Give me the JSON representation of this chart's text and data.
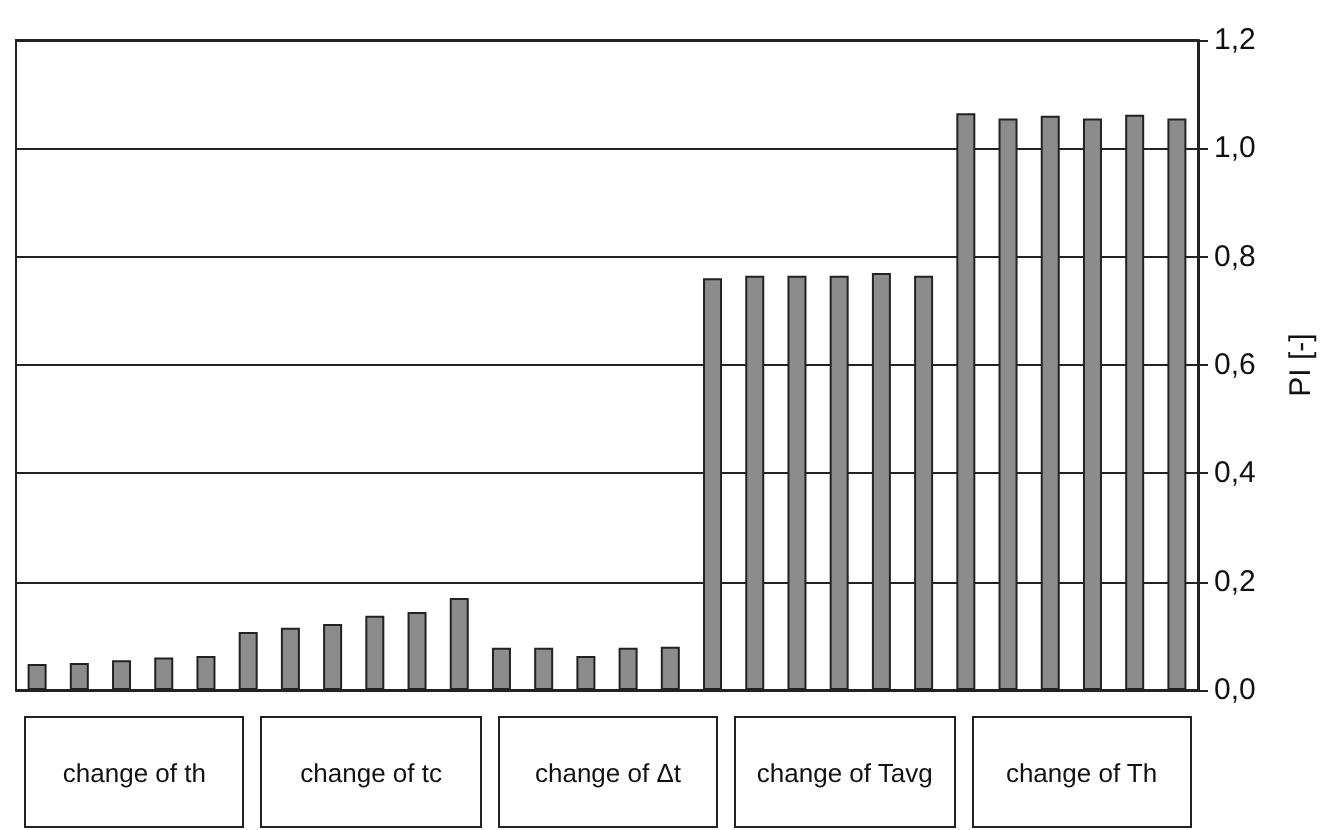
{
  "chart_data": {
    "type": "bar",
    "ylabel": "PI [-]",
    "categories": [
      null,
      null,
      null,
      null,
      null,
      null,
      null,
      null,
      null,
      null,
      null,
      null,
      null,
      null,
      null,
      null,
      null,
      null,
      null,
      null,
      null,
      null,
      null,
      null,
      null,
      null,
      null,
      null
    ],
    "values": [
      0.048,
      0.05,
      0.055,
      0.06,
      0.063,
      0.107,
      0.115,
      0.122,
      0.137,
      0.144,
      0.17,
      0.078,
      0.078,
      0.063,
      0.078,
      0.08,
      0.76,
      0.765,
      0.765,
      0.765,
      0.77,
      0.765,
      1.065,
      1.055,
      1.06,
      1.055,
      1.062,
      1.055
    ],
    "color": "#8c8c8c",
    "ylim": [
      0,
      1.2
    ],
    "yticks": [
      {
        "value": 0,
        "label": "0,0"
      },
      {
        "value": 0.2,
        "label": "0,2"
      },
      {
        "value": 0.4,
        "label": "0,4"
      },
      {
        "value": 0.6,
        "label": "0,6"
      },
      {
        "value": 0.8,
        "label": "0,8"
      },
      {
        "value": 1,
        "label": "1,0"
      },
      {
        "value": 1.2,
        "label": "1,2"
      }
    ],
    "grid": "y",
    "annotations": [
      "change of th",
      "change of tc",
      "change of Δt",
      "change of Tavg",
      "change of Th"
    ]
  }
}
